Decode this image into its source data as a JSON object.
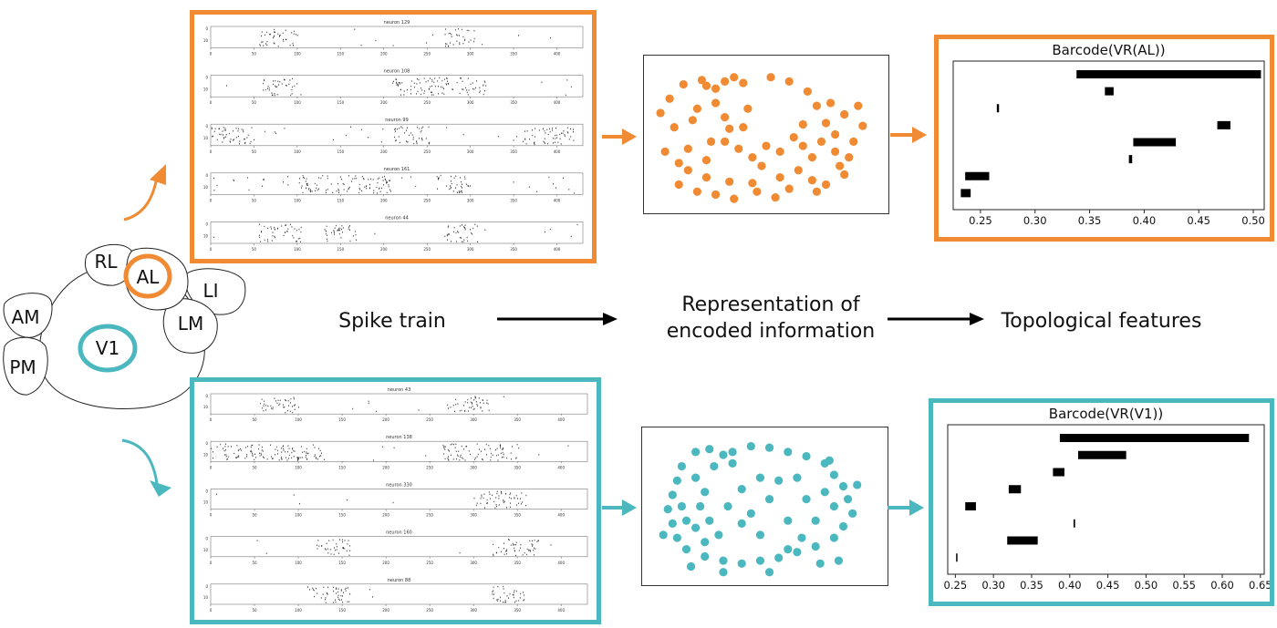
{
  "colors": {
    "orange": "#F08A33",
    "teal": "#4BB8C0",
    "gray": "#222222"
  },
  "brain_map": {
    "areas": [
      {
        "id": "rl",
        "label": "RL"
      },
      {
        "id": "al",
        "label": "AL",
        "highlight": "orange"
      },
      {
        "id": "li",
        "label": "LI"
      },
      {
        "id": "am",
        "label": "AM"
      },
      {
        "id": "lm",
        "label": "LM"
      },
      {
        "id": "v1",
        "label": "V1",
        "highlight": "teal"
      },
      {
        "id": "pm",
        "label": "PM"
      }
    ]
  },
  "pipeline": {
    "stage1": "Spike train",
    "stage2_line1": "Representation of",
    "stage2_line2": "encoded information",
    "stage3": "Topological features"
  },
  "spike_panels": {
    "al": {
      "tick_labels": [
        "0",
        "50",
        "100",
        "150",
        "200",
        "250",
        "300",
        "350",
        "400"
      ],
      "ytick_labels": [
        "0",
        "10"
      ],
      "rasters": [
        {
          "title": "neuron 129",
          "bursts": [
            [
              55,
              100
            ],
            [
              270,
              305
            ]
          ],
          "sparse": 0.25
        },
        {
          "title": "neuron 108",
          "bursts": [
            [
              60,
              100
            ],
            [
              210,
              320
            ]
          ],
          "sparse": 0.3
        },
        {
          "title": "neuron 99",
          "bursts": [
            [
              0,
              50
            ],
            [
              210,
              255
            ],
            [
              360,
              420
            ]
          ],
          "sparse": 0.6
        },
        {
          "title": "neuron 161",
          "bursts": [
            [
              100,
              210
            ],
            [
              260,
              300
            ]
          ],
          "sparse": 0.8
        },
        {
          "title": "neuron 44",
          "bursts": [
            [
              55,
              105
            ],
            [
              130,
              170
            ],
            [
              270,
              310
            ]
          ],
          "sparse": 0.2
        }
      ]
    },
    "v1": {
      "tick_labels": [
        "0",
        "50",
        "100",
        "150",
        "200",
        "250",
        "300",
        "350",
        "400"
      ],
      "ytick_labels": [
        "0",
        "10"
      ],
      "rasters": [
        {
          "title": "neuron 43",
          "bursts": [
            [
              55,
              100
            ],
            [
              270,
              320
            ]
          ],
          "sparse": 0.15
        },
        {
          "title": "neuron 138",
          "bursts": [
            [
              0,
              130
            ],
            [
              265,
              350
            ]
          ],
          "sparse": 0.5
        },
        {
          "title": "neuron 330",
          "bursts": [
            [
              300,
              360
            ]
          ],
          "sparse": 0.15
        },
        {
          "title": "neuron 160",
          "bursts": [
            [
              120,
              160
            ],
            [
              320,
              375
            ]
          ],
          "sparse": 0.1
        },
        {
          "title": "neuron 88",
          "bursts": [
            [
              110,
              160
            ],
            [
              320,
              360
            ]
          ],
          "sparse": 0.1
        }
      ]
    }
  },
  "chart_data": [
    {
      "type": "scatter",
      "title": "",
      "color": "orange",
      "shape": "ring",
      "points": [
        [
          0.57,
          0.15
        ],
        [
          0.61,
          0.12
        ],
        [
          0.62,
          0.16
        ],
        [
          0.64,
          0.18
        ],
        [
          0.66,
          0.13
        ],
        [
          0.68,
          0.1
        ],
        [
          0.7,
          0.14
        ],
        [
          0.6,
          0.32
        ],
        [
          0.55,
          0.45
        ],
        [
          0.53,
          0.62
        ],
        [
          0.56,
          0.7
        ],
        [
          0.58,
          0.75
        ],
        [
          0.62,
          0.8
        ],
        [
          0.67,
          0.83
        ],
        [
          0.72,
          0.84
        ],
        [
          0.78,
          0.8
        ],
        [
          0.82,
          0.75
        ],
        [
          0.85,
          0.66
        ],
        [
          0.87,
          0.55
        ],
        [
          0.88,
          0.42
        ],
        [
          0.86,
          0.3
        ],
        [
          0.84,
          0.2
        ],
        [
          0.8,
          0.13
        ],
        [
          0.76,
          0.1
        ],
        [
          0.64,
          0.28
        ],
        [
          0.66,
          0.38
        ],
        [
          0.63,
          0.55
        ],
        [
          0.69,
          0.6
        ],
        [
          0.72,
          0.66
        ],
        [
          0.75,
          0.58
        ],
        [
          0.78,
          0.62
        ],
        [
          0.81,
          0.52
        ],
        [
          0.83,
          0.58
        ],
        [
          0.9,
          0.5
        ],
        [
          0.92,
          0.36
        ],
        [
          0.94,
          0.55
        ],
        [
          0.96,
          0.44
        ],
        [
          0.9,
          0.62
        ],
        [
          0.91,
          0.72
        ],
        [
          0.52,
          0.35
        ],
        [
          0.56,
          0.85
        ],
        [
          0.6,
          0.9
        ],
        [
          0.64,
          0.92
        ],
        [
          0.66,
          0.55
        ],
        [
          0.7,
          0.45
        ],
        [
          0.74,
          0.72
        ],
        [
          0.8,
          0.88
        ],
        [
          0.85,
          0.82
        ],
        [
          0.58,
          0.6
        ],
        [
          0.62,
          0.68
        ],
        [
          0.95,
          0.3
        ],
        [
          0.93,
          0.66
        ],
        [
          0.68,
          0.95
        ],
        [
          0.73,
          0.9
        ],
        [
          0.77,
          0.94
        ],
        [
          0.88,
          0.85
        ],
        [
          0.54,
          0.25
        ],
        [
          0.59,
          0.4
        ],
        [
          0.67,
          0.46
        ],
        [
          0.71,
          0.32
        ],
        [
          0.89,
          0.28
        ],
        [
          0.86,
          0.9
        ],
        [
          0.83,
          0.43
        ],
        [
          0.92,
          0.78
        ]
      ]
    },
    {
      "type": "bar",
      "title": "Barcode(VR(AL))",
      "xlim": [
        0.225,
        0.51
      ],
      "xticks": [
        "0.25",
        "0.30",
        "0.35",
        "0.40",
        "0.45",
        "0.50"
      ],
      "xtick_values": [
        0.25,
        0.3,
        0.35,
        0.4,
        0.45,
        0.5
      ],
      "bars": [
        {
          "start": 0.338,
          "end": 0.507
        },
        {
          "start": 0.364,
          "end": 0.372
        },
        {
          "start": 0.265,
          "end": 0.267
        },
        {
          "start": 0.467,
          "end": 0.479
        },
        {
          "start": 0.39,
          "end": 0.429
        },
        {
          "start": 0.386,
          "end": 0.389
        },
        {
          "start": 0.236,
          "end": 0.258
        },
        {
          "start": 0.232,
          "end": 0.241
        }
      ]
    },
    {
      "type": "scatter",
      "title": "",
      "color": "teal",
      "shape": "ring",
      "points": [
        [
          0.6,
          0.12
        ],
        [
          0.63,
          0.1
        ],
        [
          0.66,
          0.14
        ],
        [
          0.68,
          0.12
        ],
        [
          0.72,
          0.08
        ],
        [
          0.76,
          0.09
        ],
        [
          0.8,
          0.12
        ],
        [
          0.84,
          0.15
        ],
        [
          0.88,
          0.2
        ],
        [
          0.9,
          0.28
        ],
        [
          0.92,
          0.36
        ],
        [
          0.93,
          0.45
        ],
        [
          0.94,
          0.55
        ],
        [
          0.92,
          0.64
        ],
        [
          0.9,
          0.72
        ],
        [
          0.86,
          0.78
        ],
        [
          0.82,
          0.82
        ],
        [
          0.78,
          0.86
        ],
        [
          0.74,
          0.88
        ],
        [
          0.7,
          0.9
        ],
        [
          0.66,
          0.88
        ],
        [
          0.62,
          0.85
        ],
        [
          0.58,
          0.8
        ],
        [
          0.56,
          0.72
        ],
        [
          0.55,
          0.62
        ],
        [
          0.54,
          0.52
        ],
        [
          0.55,
          0.42
        ],
        [
          0.56,
          0.32
        ],
        [
          0.57,
          0.22
        ],
        [
          0.6,
          0.3
        ],
        [
          0.62,
          0.4
        ],
        [
          0.61,
          0.5
        ],
        [
          0.63,
          0.6
        ],
        [
          0.65,
          0.7
        ],
        [
          0.67,
          0.5
        ],
        [
          0.7,
          0.38
        ],
        [
          0.7,
          0.62
        ],
        [
          0.74,
          0.3
        ],
        [
          0.76,
          0.45
        ],
        [
          0.74,
          0.7
        ],
        [
          0.78,
          0.32
        ],
        [
          0.8,
          0.6
        ],
        [
          0.82,
          0.3
        ],
        [
          0.84,
          0.45
        ],
        [
          0.86,
          0.6
        ],
        [
          0.88,
          0.4
        ],
        [
          0.87,
          0.9
        ],
        [
          0.59,
          0.92
        ],
        [
          0.58,
          0.6
        ],
        [
          0.64,
          0.22
        ],
        [
          0.68,
          0.2
        ],
        [
          0.9,
          0.5
        ],
        [
          0.89,
          0.18
        ],
        [
          0.8,
          0.8
        ],
        [
          0.95,
          0.35
        ],
        [
          0.53,
          0.7
        ],
        [
          0.57,
          0.5
        ],
        [
          0.66,
          0.96
        ],
        [
          0.76,
          0.96
        ],
        [
          0.62,
          0.75
        ],
        [
          0.72,
          0.55
        ],
        [
          0.83,
          0.72
        ],
        [
          0.91,
          0.88
        ],
        [
          0.6,
          0.65
        ]
      ]
    },
    {
      "type": "bar",
      "title": "Barcode(VR(V1))",
      "xlim": [
        0.24,
        0.655
      ],
      "xticks": [
        "0.25",
        "0.30",
        "0.35",
        "0.40",
        "0.45",
        "0.50",
        "0.55",
        "0.60",
        "0.65"
      ],
      "xtick_values": [
        0.25,
        0.3,
        0.35,
        0.4,
        0.45,
        0.5,
        0.55,
        0.6,
        0.65
      ],
      "bars": [
        {
          "start": 0.387,
          "end": 0.635
        },
        {
          "start": 0.411,
          "end": 0.474
        },
        {
          "start": 0.378,
          "end": 0.393
        },
        {
          "start": 0.32,
          "end": 0.336
        },
        {
          "start": 0.263,
          "end": 0.277
        },
        {
          "start": 0.405,
          "end": 0.407
        },
        {
          "start": 0.318,
          "end": 0.358
        },
        {
          "start": 0.251,
          "end": 0.252
        }
      ]
    }
  ]
}
